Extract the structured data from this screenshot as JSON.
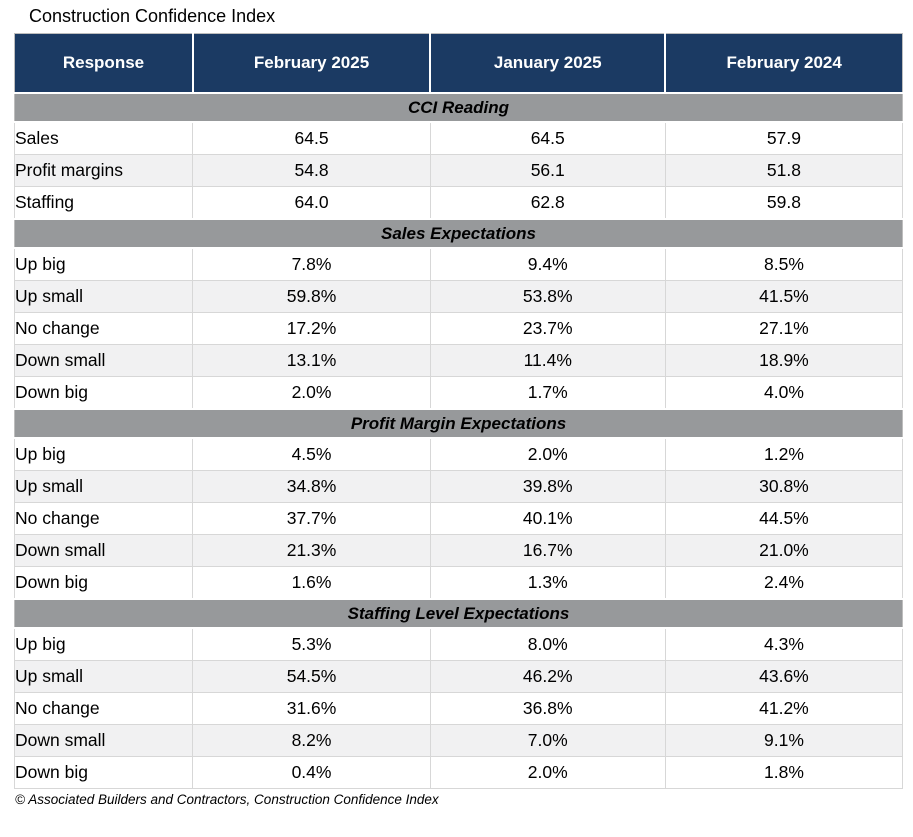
{
  "colors": {
    "header_bg": "#1B3A63",
    "header_text": "#FFFFFF",
    "section_bg": "#97999B",
    "row_alt_bg": "#F1F1F2",
    "row_bg": "#FFFFFF",
    "grid": "#D7D7D7",
    "text": "#000000"
  },
  "chart_data": {
    "type": "table",
    "title": "Construction Confidence Index",
    "columns": [
      "Response",
      "February 2025",
      "January 2025",
      "February 2024"
    ],
    "sections": [
      {
        "name": "CCI Reading",
        "rows": [
          [
            "Sales",
            "64.5",
            "64.5",
            "57.9"
          ],
          [
            "Profit margins",
            "54.8",
            "56.1",
            "51.8"
          ],
          [
            "Staffing",
            "64.0",
            "62.8",
            "59.8"
          ]
        ]
      },
      {
        "name": "Sales Expectations",
        "rows": [
          [
            "Up big",
            "7.8%",
            "9.4%",
            "8.5%"
          ],
          [
            "Up small",
            "59.8%",
            "53.8%",
            "41.5%"
          ],
          [
            "No change",
            "17.2%",
            "23.7%",
            "27.1%"
          ],
          [
            "Down small",
            "13.1%",
            "11.4%",
            "18.9%"
          ],
          [
            "Down big",
            "2.0%",
            "1.7%",
            "4.0%"
          ]
        ]
      },
      {
        "name": "Profit Margin Expectations",
        "rows": [
          [
            "Up big",
            "4.5%",
            "2.0%",
            "1.2%"
          ],
          [
            "Up small",
            "34.8%",
            "39.8%",
            "30.8%"
          ],
          [
            "No change",
            "37.7%",
            "40.1%",
            "44.5%"
          ],
          [
            "Down small",
            "21.3%",
            "16.7%",
            "21.0%"
          ],
          [
            "Down big",
            "1.6%",
            "1.3%",
            "2.4%"
          ]
        ]
      },
      {
        "name": "Staffing Level Expectations",
        "rows": [
          [
            "Up big",
            "5.3%",
            "8.0%",
            "4.3%"
          ],
          [
            "Up small",
            "54.5%",
            "46.2%",
            "43.6%"
          ],
          [
            "No change",
            "31.6%",
            "36.8%",
            "41.2%"
          ],
          [
            "Down small",
            "8.2%",
            "7.0%",
            "9.1%"
          ],
          [
            "Down big",
            "0.4%",
            "2.0%",
            "1.8%"
          ]
        ]
      }
    ],
    "source": "© Associated Builders and Contractors, Construction Confidence Index"
  }
}
